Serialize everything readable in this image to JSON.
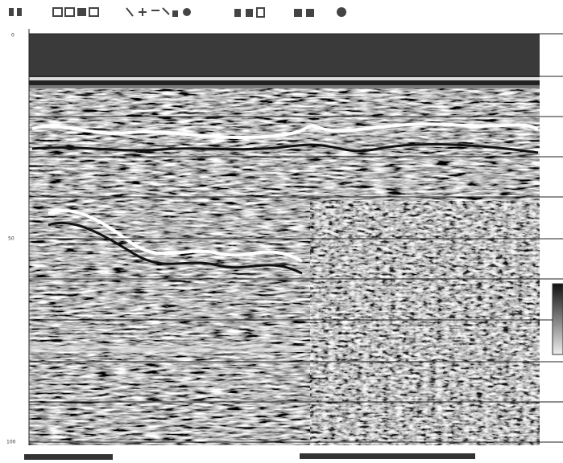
{
  "depth_axis": {
    "labels": [
      "0",
      "50",
      "100"
    ]
  }
}
